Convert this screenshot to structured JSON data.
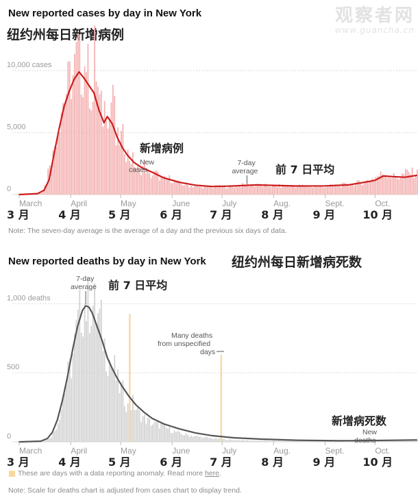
{
  "watermark": {
    "text": "观察者网",
    "url": "www.guancha.cn"
  },
  "cases_chart": {
    "title": "New reported cases by day in New York",
    "title_cn": "纽约州每日新增病例",
    "note": "Note: The seven-day average is the average of a day and the previous six days of data."
  },
  "deaths_chart": {
    "title": "New reported deaths by day in New York",
    "title_cn": "纽约州每日新增病死数",
    "legend_text": "These are days with a data reporting anomaly. Read more",
    "legend_link": "here",
    "legend_period": ".",
    "note": "Note: Scale for deaths chart is adjusted from cases chart to display trend."
  },
  "colors": {
    "cases_bar": "#f4b3b3",
    "cases_line": "#cc1b1b",
    "deaths_bar": "#d3d3d3",
    "deaths_line": "#555555",
    "anomaly": "#f7d9a0",
    "grid": "#d9d9d9"
  },
  "chart_data": [
    {
      "type": "bar",
      "title": "New reported cases by day in New York",
      "ylim": [
        0,
        12000
      ],
      "yticks": [
        0,
        5000,
        10000
      ],
      "ytick_labels": [
        "0",
        "5,000",
        "10,000 cases"
      ],
      "x_months": [
        "March",
        "April",
        "May",
        "June",
        "July",
        "Aug.",
        "Sept.",
        "Oct."
      ],
      "x_months_cn": [
        "3 月",
        "4 月",
        "5 月",
        "6 月",
        "7 月",
        "8 月",
        "9 月",
        "10 月"
      ],
      "x_start": "2020-03-01",
      "x_end": "2020-10-26",
      "grid": true,
      "series": [
        {
          "name": "New cases",
          "kind": "bar",
          "points": [
            [
              "2020-03-01",
              0
            ],
            [
              "2020-03-10",
              40
            ],
            [
              "2020-03-14",
              200
            ],
            [
              "2020-03-17",
              1000
            ],
            [
              "2020-03-19",
              2800
            ],
            [
              "2020-03-21",
              3200
            ],
            [
              "2020-03-23",
              4800
            ],
            [
              "2020-03-26",
              7000
            ],
            [
              "2020-03-28",
              7900
            ],
            [
              "2020-03-31",
              9300
            ],
            [
              "2020-04-02",
              9500
            ],
            [
              "2020-04-04",
              10800
            ],
            [
              "2020-04-05",
              11500
            ],
            [
              "2020-04-07",
              9800
            ],
            [
              "2020-04-09",
              10400
            ],
            [
              "2020-04-10",
              11200
            ],
            [
              "2020-04-12",
              8800
            ],
            [
              "2020-04-14",
              7500
            ],
            [
              "2020-04-15",
              11400
            ],
            [
              "2020-04-17",
              8400
            ],
            [
              "2020-04-18",
              7300
            ],
            [
              "2020-04-20",
              6400
            ],
            [
              "2020-04-22",
              7700
            ],
            [
              "2020-04-24",
              6200
            ],
            [
              "2020-04-26",
              9000
            ],
            [
              "2020-04-28",
              4200
            ],
            [
              "2020-04-30",
              4500
            ],
            [
              "2020-05-02",
              4600
            ],
            [
              "2020-05-04",
              3500
            ],
            [
              "2020-05-06",
              3000
            ],
            [
              "2020-05-08",
              2800
            ],
            [
              "2020-05-10",
              2200
            ],
            [
              "2020-05-12",
              1900
            ],
            [
              "2020-05-15",
              2400
            ],
            [
              "2020-05-18",
              1500
            ],
            [
              "2020-05-22",
              1700
            ],
            [
              "2020-05-26",
              1200
            ],
            [
              "2020-05-30",
              1300
            ],
            [
              "2020-06-05",
              900
            ],
            [
              "2020-06-10",
              750
            ],
            [
              "2020-06-15",
              650
            ],
            [
              "2020-06-25",
              620
            ],
            [
              "2020-07-05",
              650
            ],
            [
              "2020-07-15",
              780
            ],
            [
              "2020-07-25",
              720
            ],
            [
              "2020-08-05",
              680
            ],
            [
              "2020-08-15",
              700
            ],
            [
              "2020-08-25",
              640
            ],
            [
              "2020-09-05",
              700
            ],
            [
              "2020-09-15",
              820
            ],
            [
              "2020-09-25",
              1050
            ],
            [
              "2020-10-01",
              1400
            ],
            [
              "2020-10-06",
              1750
            ],
            [
              "2020-10-10",
              1500
            ],
            [
              "2020-10-15",
              1400
            ],
            [
              "2020-10-20",
              1800
            ],
            [
              "2020-10-26",
              1700
            ]
          ]
        },
        {
          "name": "7-day average",
          "kind": "line",
          "points": [
            [
              "2020-03-01",
              0
            ],
            [
              "2020-03-12",
              80
            ],
            [
              "2020-03-16",
              350
            ],
            [
              "2020-03-19",
              1200
            ],
            [
              "2020-03-22",
              3300
            ],
            [
              "2020-03-25",
              5300
            ],
            [
              "2020-03-28",
              7100
            ],
            [
              "2020-03-31",
              8300
            ],
            [
              "2020-04-03",
              9300
            ],
            [
              "2020-04-06",
              9900
            ],
            [
              "2020-04-09",
              9400
            ],
            [
              "2020-04-12",
              8800
            ],
            [
              "2020-04-15",
              8200
            ],
            [
              "2020-04-18",
              6800
            ],
            [
              "2020-04-21",
              5800
            ],
            [
              "2020-04-23",
              6300
            ],
            [
              "2020-04-26",
              5700
            ],
            [
              "2020-04-29",
              4600
            ],
            [
              "2020-05-02",
              3800
            ],
            [
              "2020-05-05",
              3200
            ],
            [
              "2020-05-09",
              2600
            ],
            [
              "2020-05-14",
              2150
            ],
            [
              "2020-05-20",
              1800
            ],
            [
              "2020-05-27",
              1350
            ],
            [
              "2020-06-05",
              1000
            ],
            [
              "2020-06-15",
              760
            ],
            [
              "2020-06-25",
              650
            ],
            [
              "2020-07-05",
              680
            ],
            [
              "2020-07-15",
              740
            ],
            [
              "2020-07-22",
              780
            ],
            [
              "2020-08-01",
              740
            ],
            [
              "2020-08-15",
              690
            ],
            [
              "2020-09-01",
              700
            ],
            [
              "2020-09-15",
              780
            ],
            [
              "2020-09-25",
              1000
            ],
            [
              "2020-10-01",
              1150
            ],
            [
              "2020-10-06",
              1500
            ],
            [
              "2020-10-12",
              1450
            ],
            [
              "2020-10-19",
              1400
            ],
            [
              "2020-10-26",
              1550
            ]
          ]
        }
      ],
      "annotations": [
        {
          "text_lines": [
            "New",
            "cases"
          ],
          "cn": "新增病例"
        },
        {
          "text_lines": [
            "7-day",
            "average"
          ],
          "cn": "前 7 日平均"
        }
      ]
    },
    {
      "type": "bar",
      "title": "New reported deaths by day in New York",
      "ylim": [
        0,
        1200
      ],
      "yticks": [
        0,
        500,
        1000
      ],
      "ytick_labels": [
        "0",
        "500",
        "1,000 deaths"
      ],
      "x_months": [
        "March",
        "April",
        "May",
        "June",
        "July",
        "Aug.",
        "Sept.",
        "Oct."
      ],
      "x_months_cn": [
        "3 月",
        "4 月",
        "5 月",
        "6 月",
        "7 月",
        "8 月",
        "9 月",
        "10 月"
      ],
      "x_start": "2020-03-01",
      "x_end": "2020-10-26",
      "grid": true,
      "series": [
        {
          "name": "New deaths",
          "kind": "bar",
          "points": [
            [
              "2020-03-01",
              0
            ],
            [
              "2020-03-15",
              5
            ],
            [
              "2020-03-18",
              20
            ],
            [
              "2020-03-20",
              40
            ],
            [
              "2020-03-22",
              80
            ],
            [
              "2020-03-24",
              150
            ],
            [
              "2020-03-26",
              250
            ],
            [
              "2020-03-28",
              380
            ],
            [
              "2020-03-30",
              480
            ],
            [
              "2020-04-01",
              560
            ],
            [
              "2020-04-03",
              700
            ],
            [
              "2020-04-05",
              850
            ],
            [
              "2020-04-07",
              960
            ],
            [
              "2020-04-09",
              1000
            ],
            [
              "2020-04-11",
              980
            ],
            [
              "2020-04-13",
              1010
            ],
            [
              "2020-04-15",
              960
            ],
            [
              "2020-04-17",
              900
            ],
            [
              "2020-04-19",
              840
            ],
            [
              "2020-04-21",
              700
            ],
            [
              "2020-04-23",
              620
            ],
            [
              "2020-04-25",
              560
            ],
            [
              "2020-04-27",
              520
            ],
            [
              "2020-04-29",
              420
            ],
            [
              "2020-05-02",
              360
            ],
            [
              "2020-05-05",
              250
            ],
            [
              "2020-05-08",
              280
            ],
            [
              "2020-05-12",
              200
            ],
            [
              "2020-05-16",
              160
            ],
            [
              "2020-05-20",
              130
            ],
            [
              "2020-05-25",
              120
            ],
            [
              "2020-05-30",
              90
            ],
            [
              "2020-06-05",
              60
            ],
            [
              "2020-06-15",
              40
            ],
            [
              "2020-06-25",
              25
            ],
            [
              "2020-07-05",
              15
            ],
            [
              "2020-07-20",
              10
            ],
            [
              "2020-08-01",
              8
            ],
            [
              "2020-08-20",
              6
            ],
            [
              "2020-09-10",
              5
            ],
            [
              "2020-10-01",
              8
            ],
            [
              "2020-10-26",
              10
            ]
          ]
        },
        {
          "name": "7-day average",
          "kind": "line",
          "points": [
            [
              "2020-03-01",
              0
            ],
            [
              "2020-03-14",
              5
            ],
            [
              "2020-03-18",
              25
            ],
            [
              "2020-03-21",
              70
            ],
            [
              "2020-03-24",
              160
            ],
            [
              "2020-03-27",
              300
            ],
            [
              "2020-03-30",
              470
            ],
            [
              "2020-04-02",
              660
            ],
            [
              "2020-04-05",
              830
            ],
            [
              "2020-04-08",
              950
            ],
            [
              "2020-04-10",
              985
            ],
            [
              "2020-04-12",
              975
            ],
            [
              "2020-04-14",
              930
            ],
            [
              "2020-04-17",
              830
            ],
            [
              "2020-04-20",
              730
            ],
            [
              "2020-04-23",
              610
            ],
            [
              "2020-04-26",
              530
            ],
            [
              "2020-04-29",
              460
            ],
            [
              "2020-05-02",
              400
            ],
            [
              "2020-05-06",
              330
            ],
            [
              "2020-05-10",
              270
            ],
            [
              "2020-05-15",
              215
            ],
            [
              "2020-05-20",
              170
            ],
            [
              "2020-05-27",
              130
            ],
            [
              "2020-06-05",
              95
            ],
            [
              "2020-06-15",
              65
            ],
            [
              "2020-06-25",
              45
            ],
            [
              "2020-07-08",
              30
            ],
            [
              "2020-07-25",
              20
            ],
            [
              "2020-08-15",
              12
            ],
            [
              "2020-09-10",
              8
            ],
            [
              "2020-10-01",
              10
            ],
            [
              "2020-10-26",
              14
            ]
          ]
        },
        {
          "name": "Data reporting anomaly",
          "kind": "anomaly",
          "points": [
            [
              "2020-05-06",
              925
            ],
            [
              "2020-06-30",
              630
            ]
          ]
        }
      ],
      "annotations": [
        {
          "text_lines": [
            "7-day",
            "average"
          ],
          "cn": "前 7 日平均"
        },
        {
          "text_lines": [
            "Many deaths",
            "from unspecified",
            "days"
          ]
        },
        {
          "text_lines": [
            "New",
            "deaths"
          ],
          "cn": "新增病死数"
        }
      ]
    }
  ]
}
